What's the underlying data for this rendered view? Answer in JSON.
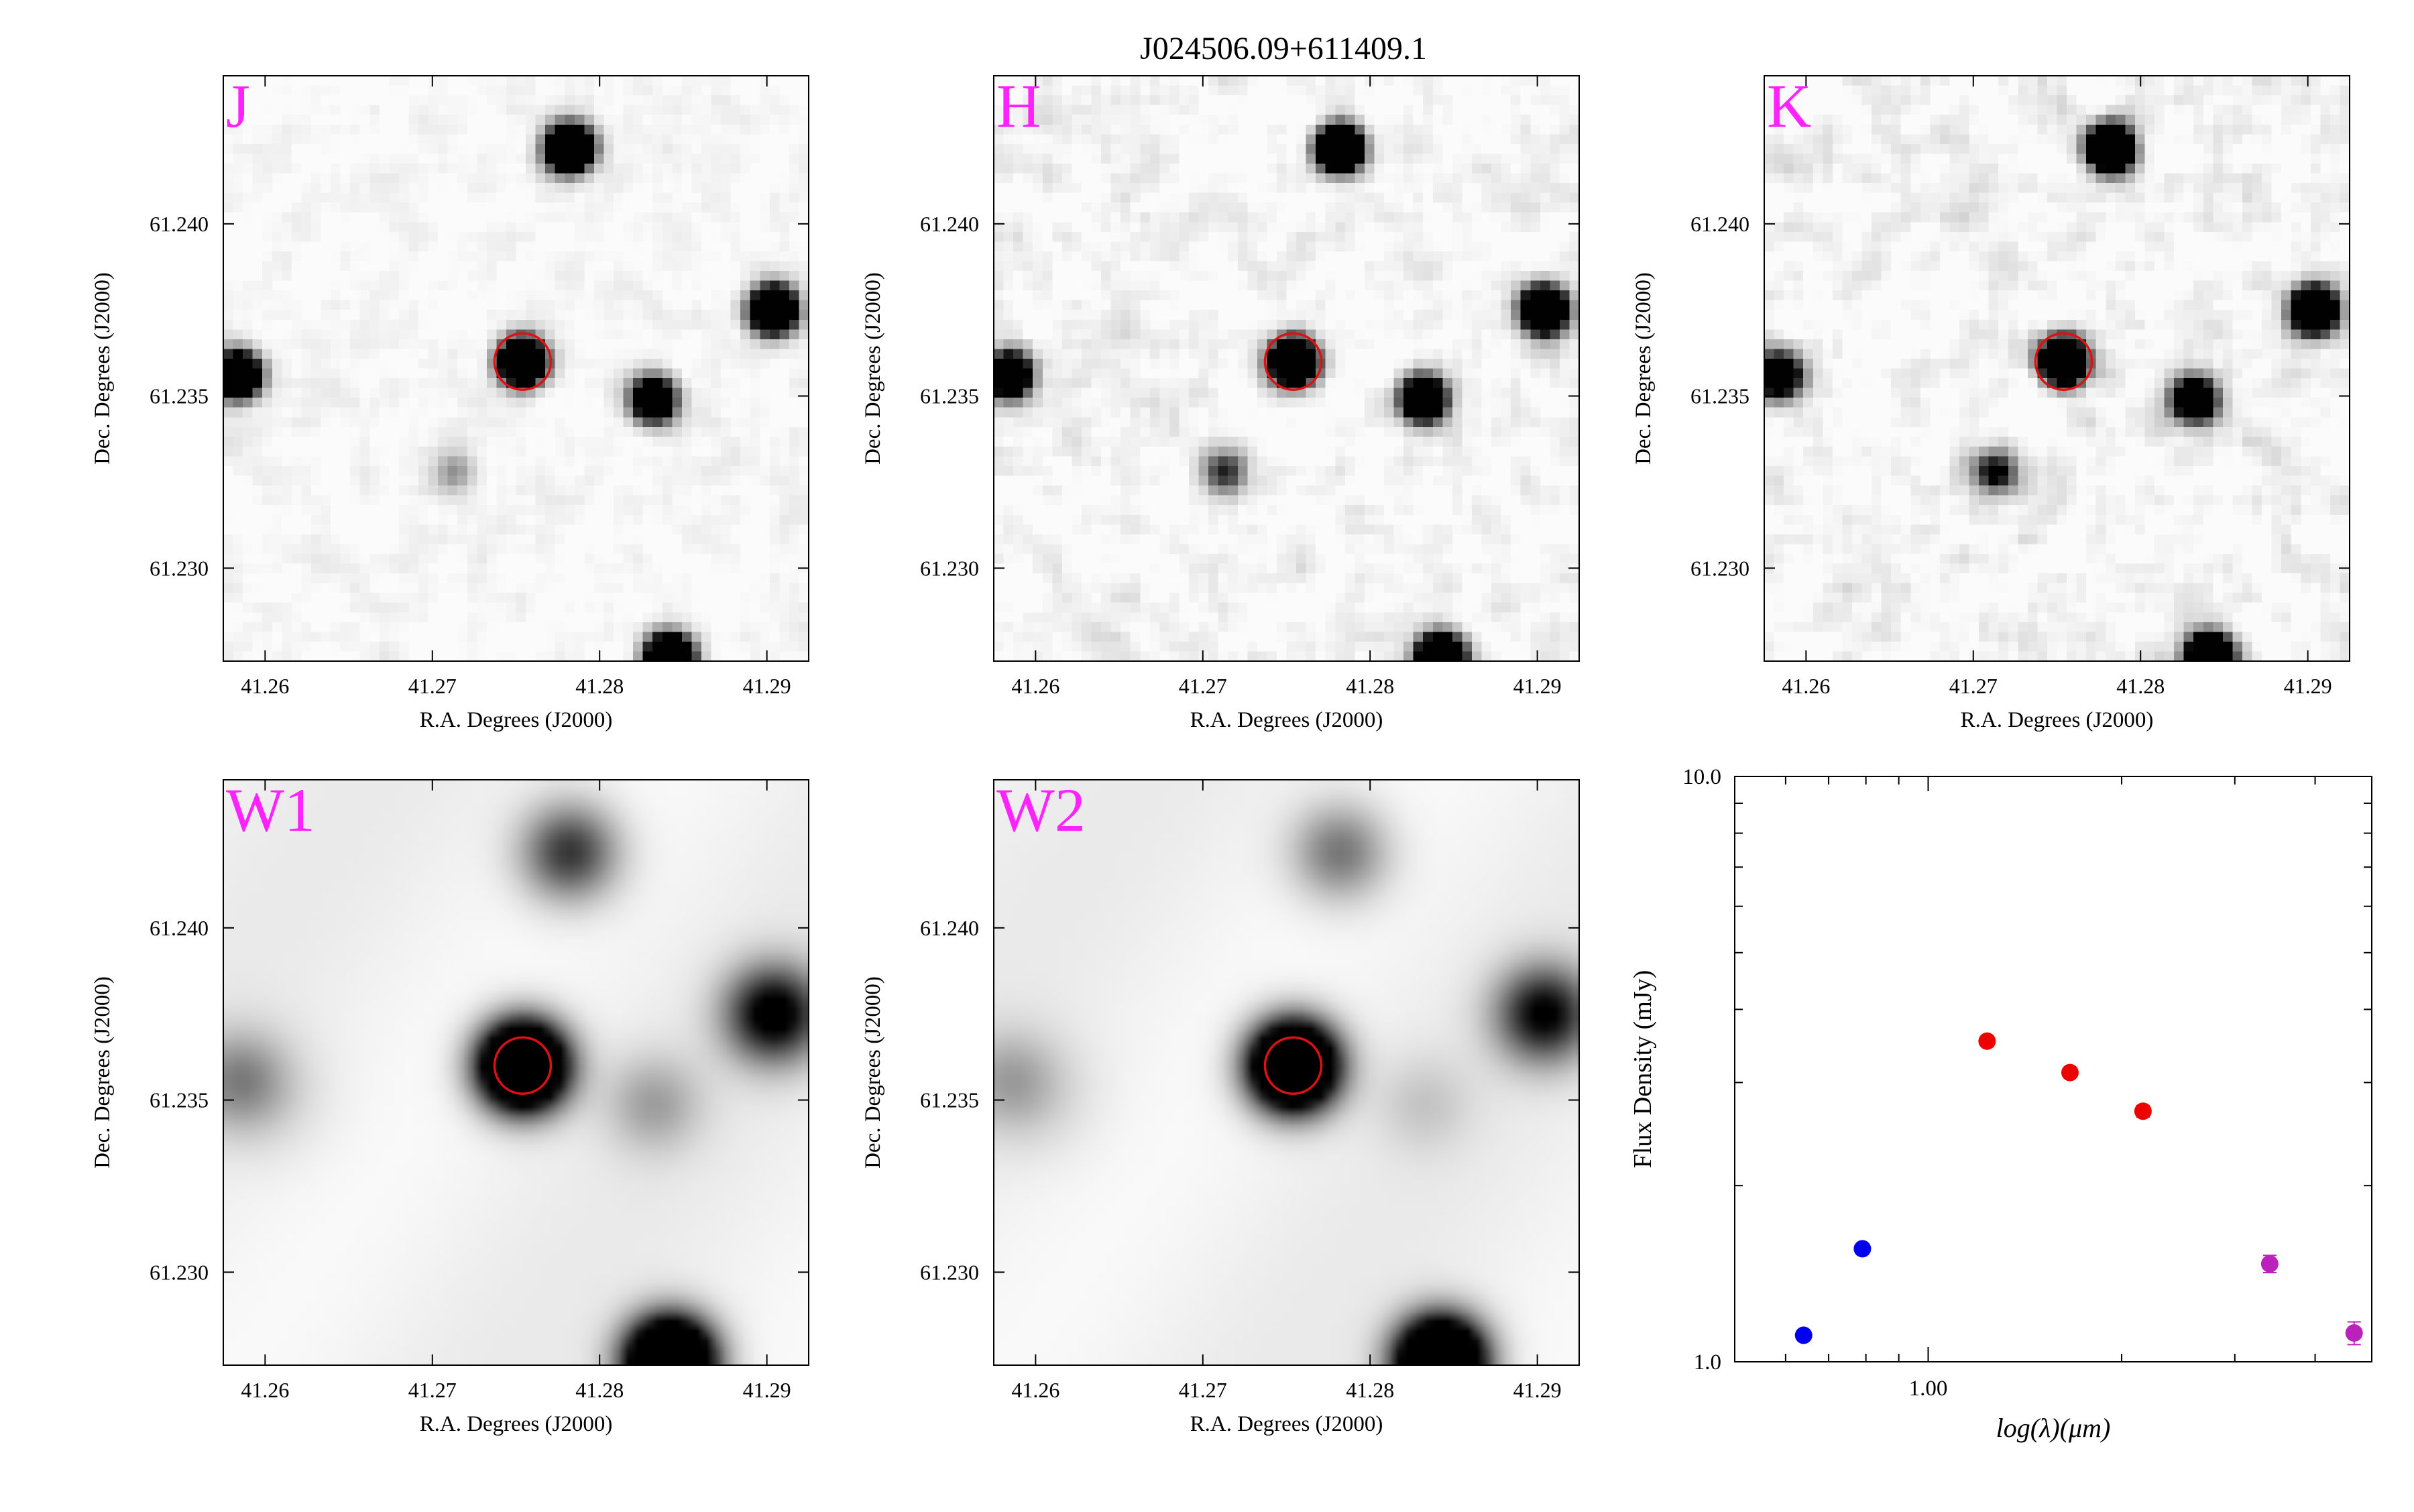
{
  "figure": {
    "title": "J024506.09+611409.1",
    "panel_xlabel": "R.A. Degrees (J2000)",
    "panel_ylabel": "Dec. Degrees (J2000)",
    "label_color": "#ff22ff",
    "aperture_color": "#dd1111"
  },
  "panels": [
    {
      "band": "J",
      "style": "sharp",
      "noise": 0.11,
      "seed": 11
    },
    {
      "band": "H",
      "style": "sharp",
      "noise": 0.17,
      "seed": 23
    },
    {
      "band": "K",
      "style": "sharp",
      "noise": 0.2,
      "seed": 37
    },
    {
      "band": "W1",
      "style": "blurred",
      "noise": 0.0,
      "seed": 41
    },
    {
      "band": "W2",
      "style": "blurred",
      "noise": 0.0,
      "seed": 53
    }
  ],
  "image_axes": {
    "ra_range": [
      41.2575,
      41.2925
    ],
    "dec_range": [
      61.2273,
      61.2443
    ],
    "ra_ticks": [
      41.26,
      41.27,
      41.28,
      41.29
    ],
    "ra_tick_labels": [
      "41.26",
      "41.27",
      "41.28",
      "41.29"
    ],
    "dec_ticks": [
      61.23,
      61.235,
      61.24
    ],
    "dec_tick_labels": [
      "61.230",
      "61.235",
      "61.240"
    ]
  },
  "sources": [
    {
      "ra": 41.2754,
      "dec": 61.236,
      "flux": [
        1.0,
        1.0,
        1.0,
        1.0,
        1.0
      ],
      "target": true
    },
    {
      "ra": 41.2782,
      "dec": 61.2422,
      "flux": [
        0.95,
        0.95,
        0.95,
        0.3,
        0.2
      ],
      "target": false
    },
    {
      "ra": 41.2904,
      "dec": 61.2375,
      "flux": [
        0.95,
        0.95,
        0.95,
        0.42,
        0.38
      ],
      "target": false
    },
    {
      "ra": 41.2832,
      "dec": 61.2349,
      "flux": [
        0.65,
        0.8,
        0.65,
        0.12,
        0.06
      ],
      "target": false
    },
    {
      "ra": 41.2584,
      "dec": 61.2356,
      "flux": [
        0.8,
        0.75,
        0.6,
        0.15,
        0.1
      ],
      "target": false
    },
    {
      "ra": 41.2842,
      "dec": 61.2274,
      "flux": [
        1.0,
        1.0,
        1.0,
        1.0,
        1.0
      ],
      "target": false
    },
    {
      "ra": 41.2713,
      "dec": 61.2328,
      "flux": [
        0.12,
        0.25,
        0.35,
        0.0,
        0.0
      ],
      "target": false
    }
  ],
  "chart_data": {
    "type": "scatter",
    "title": "",
    "xlabel": "log(λ)(μm)",
    "ylabel": "Flux Density (mJy)",
    "x_scale": "log",
    "y_scale": "log",
    "xlim": [
      0.5,
      4.9
    ],
    "ylim": [
      1.0,
      10.0
    ],
    "x_tick_labels": [
      "1.00"
    ],
    "y_tick_labels": [
      "1.0",
      "10.0"
    ],
    "series": [
      {
        "color": "#0000ee",
        "x": [
          0.64,
          0.79
        ],
        "y": [
          1.11,
          1.56
        ],
        "yerr": [
          0.02,
          0.03
        ]
      },
      {
        "color": "#ee0000",
        "x": [
          1.235,
          1.662,
          2.159
        ],
        "y": [
          3.53,
          3.12,
          2.68
        ],
        "yerr": [
          0.06,
          0.06,
          0.06
        ]
      },
      {
        "color": "#bb22bb",
        "x": [
          3.4,
          4.6
        ],
        "y": [
          1.47,
          1.12
        ],
        "yerr": [
          0.05,
          0.05
        ]
      }
    ]
  }
}
